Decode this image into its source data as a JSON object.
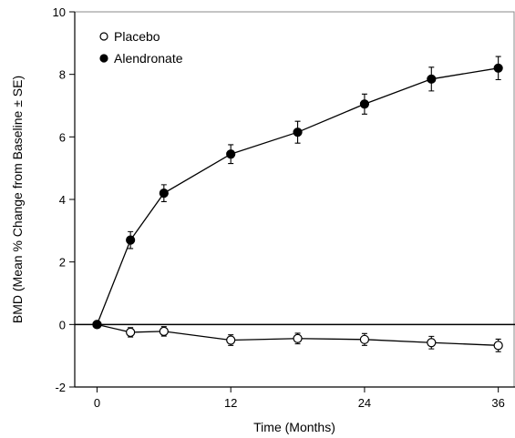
{
  "chart_data": {
    "type": "line",
    "title": "",
    "xlabel": "Time (Months)",
    "ylabel": "BMD (Mean % Change from Baseline ± SE)",
    "xlim": [
      -2,
      37.5
    ],
    "ylim": [
      -2,
      10
    ],
    "xticks": [
      0,
      12,
      24,
      36
    ],
    "yticks": [
      -2,
      0,
      2,
      4,
      6,
      8,
      10
    ],
    "x_tick_labels": [
      "0",
      "12",
      "24",
      "36"
    ],
    "y_tick_labels": [
      "-2",
      "0",
      "2",
      "4",
      "6",
      "8",
      "10"
    ],
    "reference_line_y": 0,
    "grid": false,
    "legend": "top-left",
    "series": [
      {
        "name": "Placebo",
        "marker": "open-circle",
        "color": "#000000",
        "x": [
          0,
          3,
          6,
          12,
          18,
          24,
          30,
          36
        ],
        "y": [
          0,
          -0.25,
          -0.22,
          -0.5,
          -0.45,
          -0.48,
          -0.58,
          -0.67
        ],
        "se": [
          0,
          0.15,
          0.15,
          0.17,
          0.17,
          0.19,
          0.2,
          0.2
        ]
      },
      {
        "name": "Alendronate",
        "marker": "filled-circle",
        "color": "#000000",
        "x": [
          0,
          3,
          6,
          12,
          18,
          24,
          30,
          36
        ],
        "y": [
          0,
          2.7,
          4.2,
          5.45,
          6.15,
          7.05,
          7.85,
          8.2
        ],
        "se": [
          0,
          0.27,
          0.27,
          0.3,
          0.35,
          0.32,
          0.38,
          0.37
        ]
      }
    ]
  }
}
